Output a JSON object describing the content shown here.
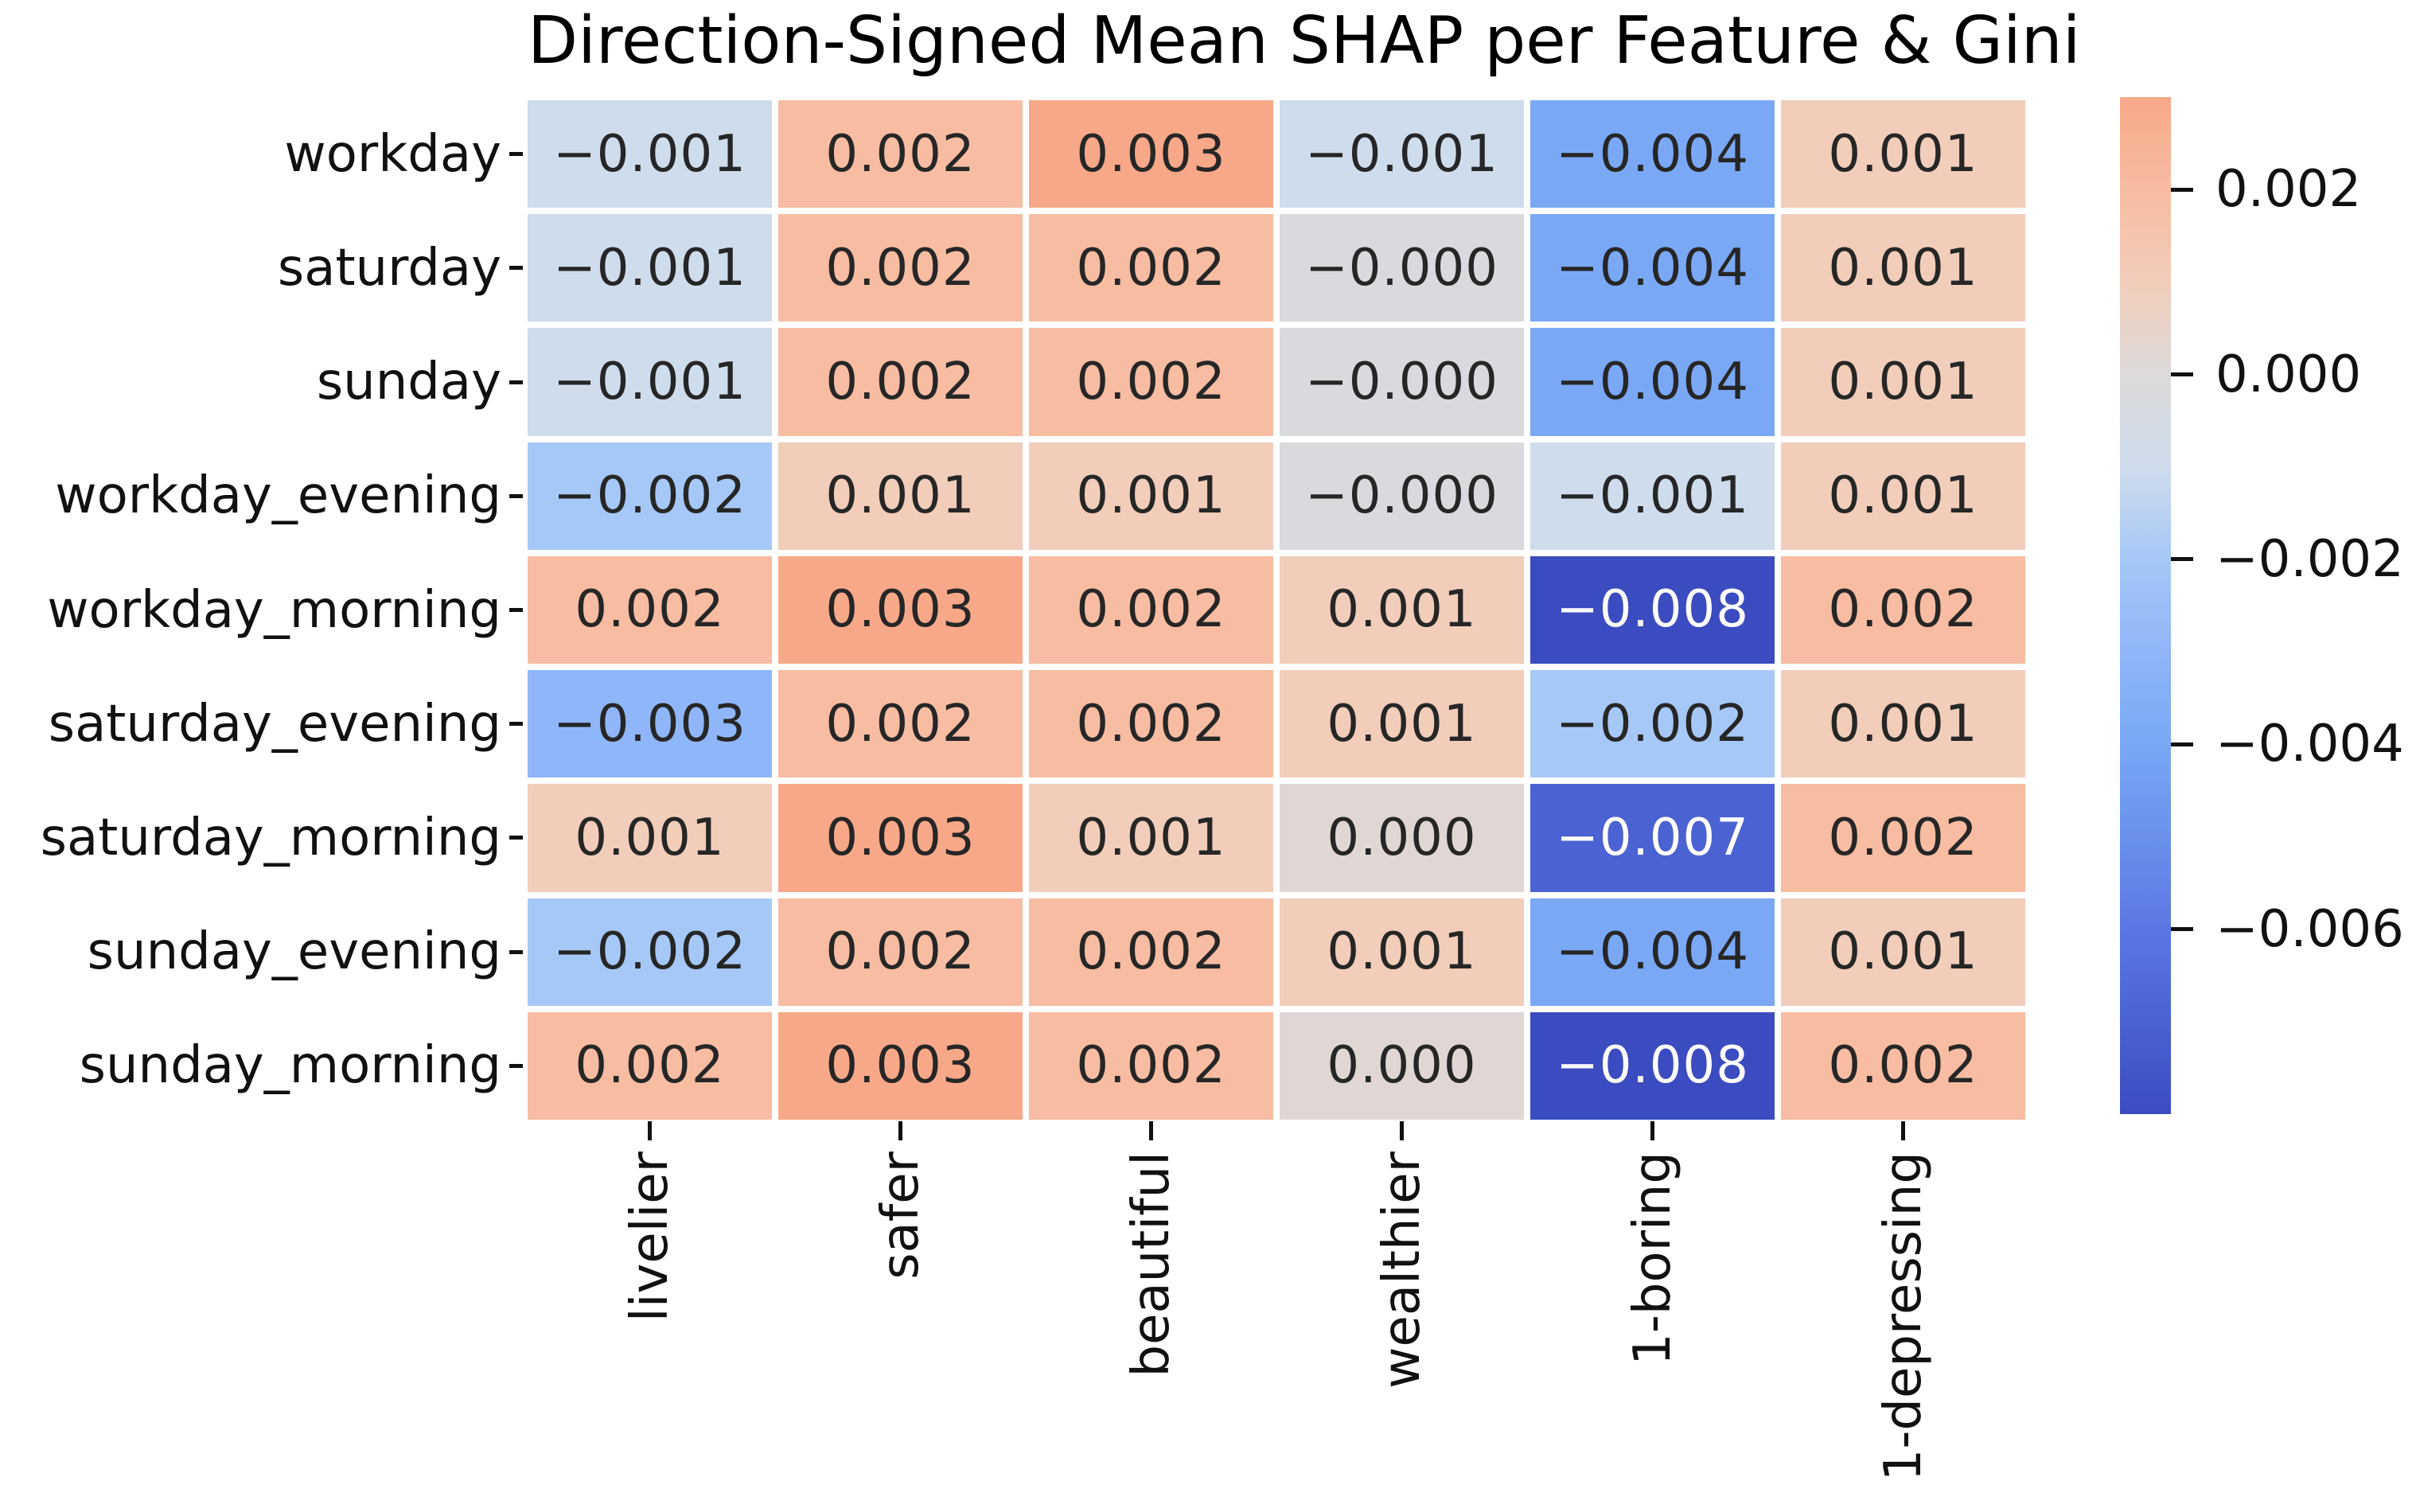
{
  "chart_data": {
    "type": "heatmap",
    "title": "Direction-Signed Mean SHAP per Feature & Gini",
    "rows": [
      "workday",
      "saturday",
      "sunday",
      "workday_evening",
      "workday_morning",
      "saturday_evening",
      "saturday_morning",
      "sunday_evening",
      "sunday_morning"
    ],
    "columns": [
      "livelier",
      "safer",
      "beautiful",
      "wealthier",
      "1-boring",
      "1-depressing"
    ],
    "cell_labels": [
      [
        "−0.001",
        "0.002",
        "0.003",
        "−0.001",
        "−0.004",
        "0.001"
      ],
      [
        "−0.001",
        "0.002",
        "0.002",
        "−0.000",
        "−0.004",
        "0.001"
      ],
      [
        "−0.001",
        "0.002",
        "0.002",
        "−0.000",
        "−0.004",
        "0.001"
      ],
      [
        "−0.002",
        "0.001",
        "0.001",
        "−0.000",
        "−0.001",
        "0.001"
      ],
      [
        "0.002",
        "0.003",
        "0.002",
        "0.001",
        "−0.008",
        "0.002"
      ],
      [
        "−0.003",
        "0.002",
        "0.002",
        "0.001",
        "−0.002",
        "0.001"
      ],
      [
        "0.001",
        "0.003",
        "0.001",
        "0.000",
        "−0.007",
        "0.002"
      ],
      [
        "−0.002",
        "0.002",
        "0.002",
        "0.001",
        "−0.004",
        "0.001"
      ],
      [
        "0.002",
        "0.003",
        "0.002",
        "0.000",
        "−0.008",
        "0.002"
      ]
    ],
    "values": [
      [
        -0.001,
        0.002,
        0.003,
        -0.001,
        -0.004,
        0.001
      ],
      [
        -0.001,
        0.002,
        0.002,
        0.0,
        -0.004,
        0.001
      ],
      [
        -0.001,
        0.002,
        0.002,
        0.0,
        -0.004,
        0.001
      ],
      [
        -0.002,
        0.001,
        0.001,
        0.0,
        -0.001,
        0.001
      ],
      [
        0.002,
        0.003,
        0.002,
        0.001,
        -0.008,
        0.002
      ],
      [
        -0.003,
        0.002,
        0.002,
        0.001,
        -0.002,
        0.001
      ],
      [
        0.001,
        0.003,
        0.001,
        0.0,
        -0.007,
        0.002
      ],
      [
        -0.002,
        0.002,
        0.002,
        0.001,
        -0.004,
        0.001
      ],
      [
        0.002,
        0.003,
        0.002,
        0.0,
        -0.008,
        0.002
      ]
    ],
    "colormap": {
      "name": "coolwarm",
      "center": 0,
      "vmin": -0.008,
      "vmax": 0.003,
      "anchors": [
        [
          0.0,
          "#3B4CC0"
        ],
        [
          0.125,
          "#5A78E4"
        ],
        [
          0.25,
          "#7AA8F5"
        ],
        [
          0.3125,
          "#8FB6F8"
        ],
        [
          0.375,
          "#A6C8F7"
        ],
        [
          0.4375,
          "#CFDCEC"
        ],
        [
          0.5,
          "#DCDADA"
        ],
        [
          0.5625,
          "#F2CDBA"
        ],
        [
          0.625,
          "#F7BCA1"
        ],
        [
          0.6875,
          "#F7A888"
        ]
      ],
      "annotation_text_dark": "#262626",
      "annotation_text_light": "#FFFFFF"
    },
    "colorbar": {
      "position": "right",
      "ticks": [
        {
          "label": "0.002",
          "value": 0.002
        },
        {
          "label": "0.000",
          "value": 0.0
        },
        {
          "label": "−0.002",
          "value": -0.002
        },
        {
          "label": "−0.004",
          "value": -0.004
        },
        {
          "label": "−0.006",
          "value": -0.006
        }
      ]
    },
    "grid_lines": "white",
    "legend_position": "right-colorbar"
  }
}
